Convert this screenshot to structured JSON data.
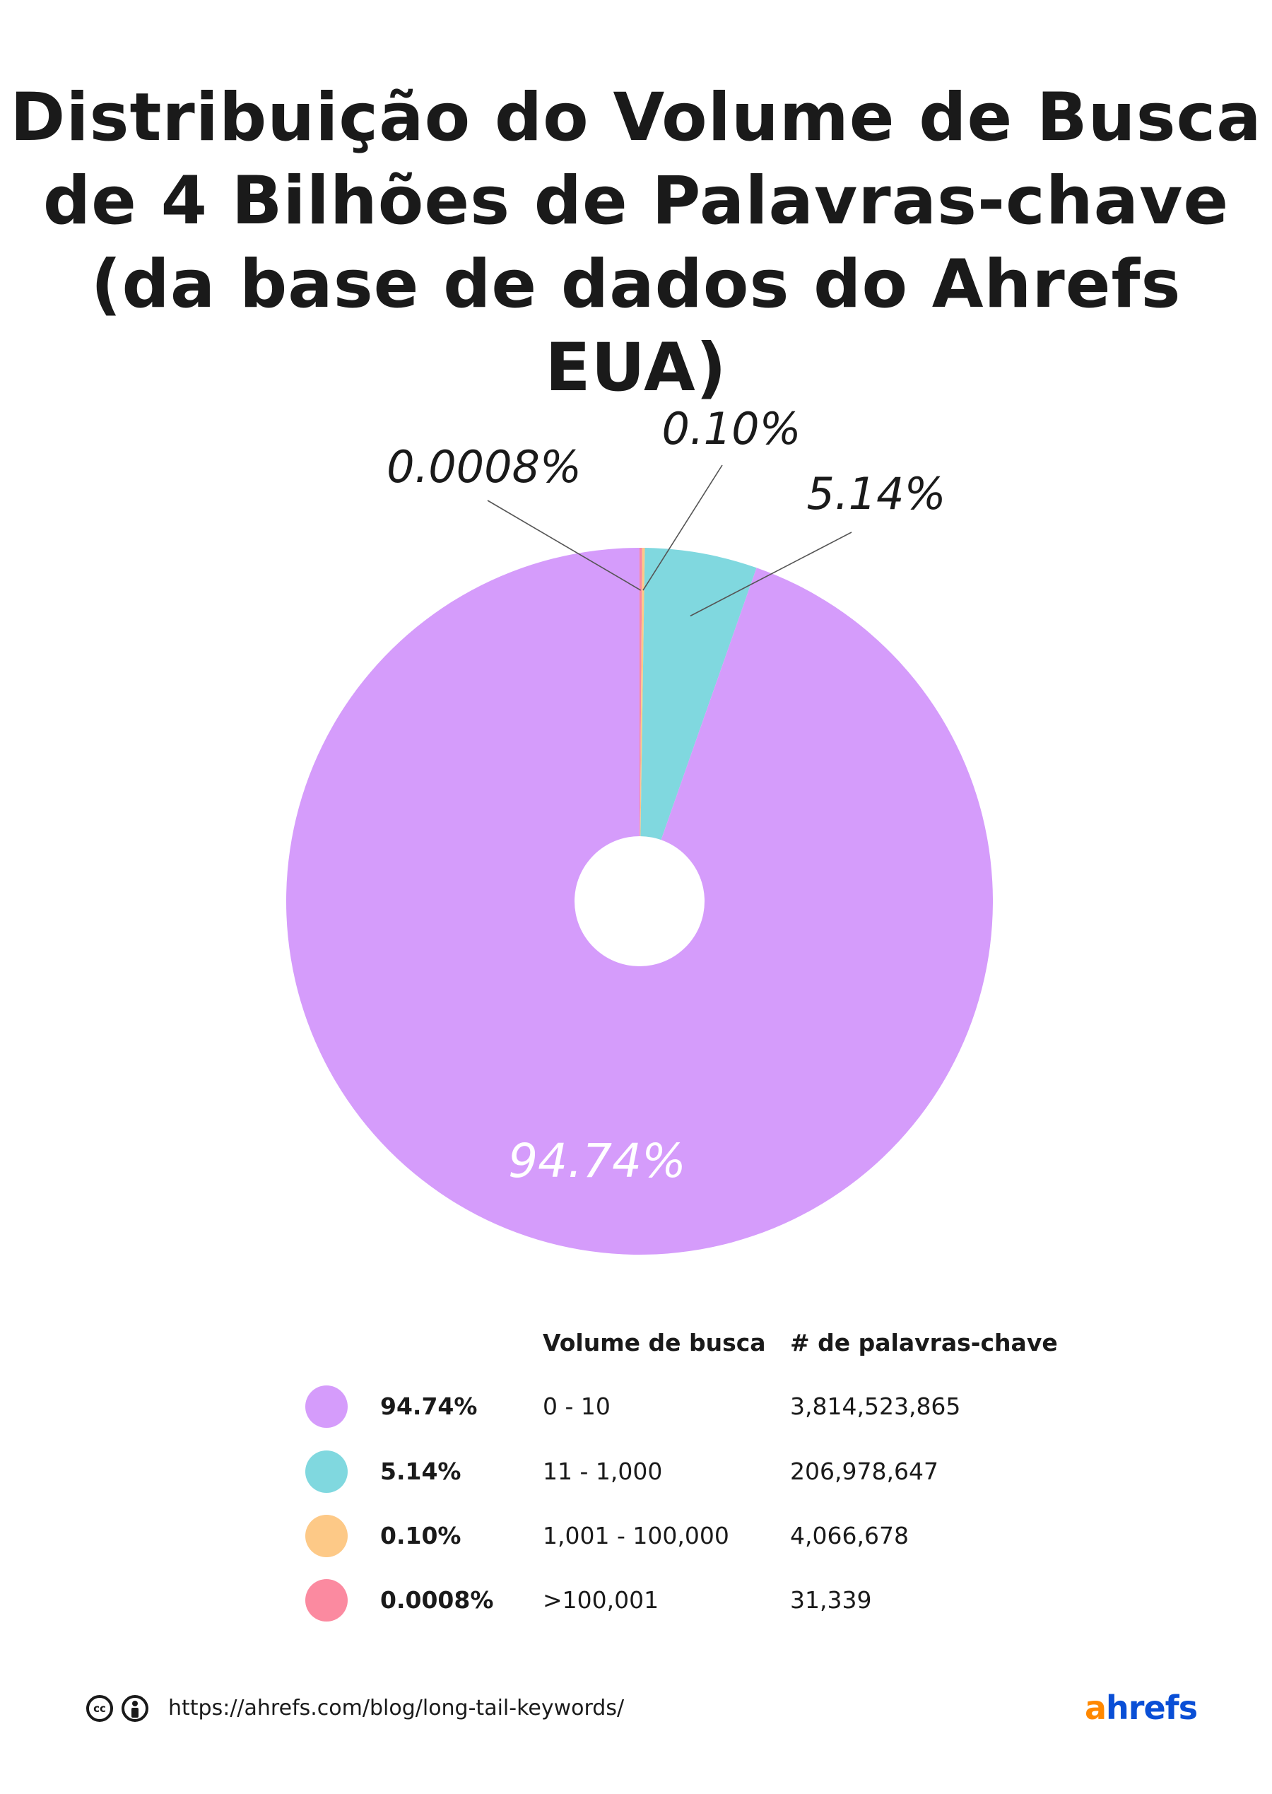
{
  "title_lines": [
    "Distribuição do Volume de Busca",
    "de 4 Bilhões de Palavras-chave",
    "(da base de dados do Ahrefs EUA)"
  ],
  "chart_data": {
    "type": "pie",
    "title": "Distribuição do Volume de Busca de 4 Bilhões de Palavras-chave (da base de dados do Ahrefs EUA)",
    "slices": [
      {
        "label": "0 - 10",
        "value": 94.74,
        "display": "94.74%",
        "color": "#d59cfb",
        "keywords": "3,814,523,865"
      },
      {
        "label": "11 - 1,000",
        "value": 5.14,
        "display": "5.14%",
        "color": "#80d8df",
        "keywords": "206,978,647"
      },
      {
        "label": "1,001 - 100,000",
        "value": 0.1,
        "display": "0.10%",
        "color": "#fdc987",
        "keywords": "4,066,678"
      },
      {
        "label": ">100,001",
        "value": 0.0008,
        "display": "0.0008%",
        "color": "#fb8aa0",
        "keywords": "31,339"
      }
    ]
  },
  "legend": {
    "header_volume": "Volume de busca",
    "header_count": "# de palavras-chave"
  },
  "footer": {
    "cc_icon": "cc-icon",
    "by_icon": "attribution-icon",
    "url": "https://ahrefs.com/blog/long-tail-keywords/",
    "logo_a": "a",
    "logo_rest": "hrefs"
  }
}
